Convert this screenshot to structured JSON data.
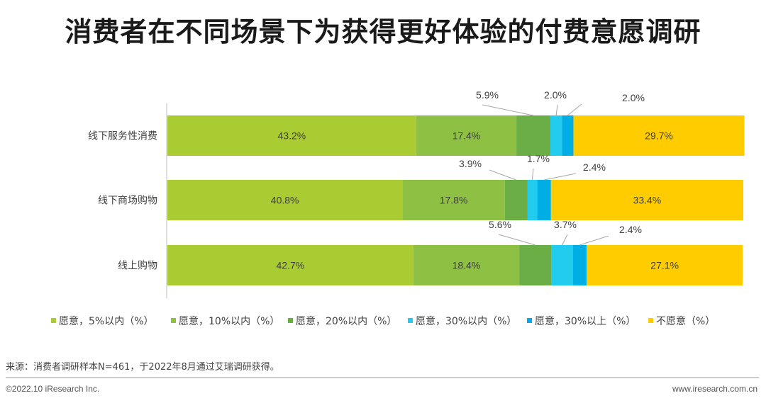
{
  "header": {
    "title": "消费者在不同场景下为获得更好体验的付费意愿调研"
  },
  "chart_data": {
    "type": "bar",
    "orientation": "horizontal",
    "stacked": true,
    "categories": [
      "线下服务性消费",
      "线下商场购物",
      "线上购物"
    ],
    "series": [
      {
        "name": "愿意，5%以内（%）",
        "color": "#AACC33",
        "values": [
          43.2,
          40.8,
          42.7
        ]
      },
      {
        "name": "愿意，10%以内（%）",
        "color": "#8DC043",
        "values": [
          17.4,
          17.8,
          18.4
        ]
      },
      {
        "name": "愿意，20%以内（%）",
        "color": "#6AAE45",
        "values": [
          5.9,
          3.9,
          5.6
        ]
      },
      {
        "name": "愿意，30%以内（%）",
        "color": "#22CCEE",
        "values": [
          2.0,
          1.7,
          3.7
        ]
      },
      {
        "name": "愿意，30%以上（%）",
        "color": "#00AEE6",
        "values": [
          2.0,
          2.4,
          2.4
        ]
      },
      {
        "name": "不愿意（%）",
        "color": "#FFCC00",
        "values": [
          29.7,
          33.4,
          27.1
        ]
      }
    ],
    "legend_position": "bottom",
    "grid": false
  },
  "footer": {
    "source": "来源：消费者调研样本N=461，于2022年8月通过艾瑞调研获得。",
    "copyright": "©2022.10 iResearch Inc.",
    "website": "www.iresearch.com.cn"
  }
}
